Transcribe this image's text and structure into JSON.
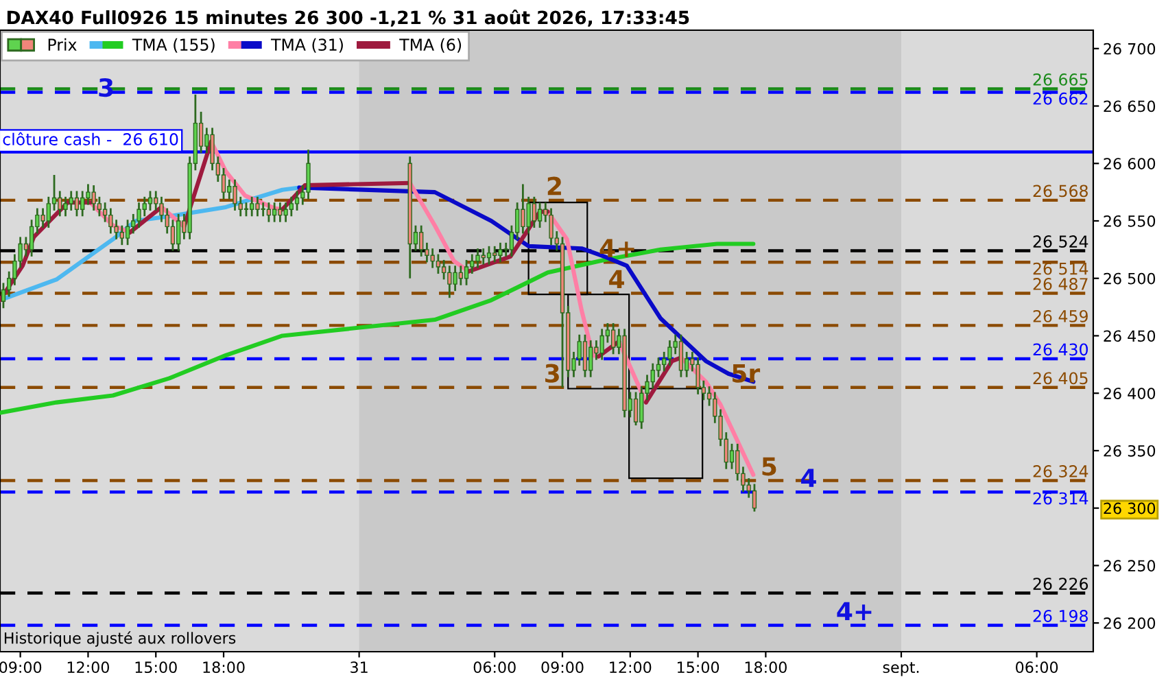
{
  "chart_data": {
    "type": "candlestick",
    "title": "DAX40 Full0926 15 minutes 26 300 -1,21 % 31 août 2026, 17:33:45",
    "series": [
      {
        "name": "Prix",
        "color": "#2d6a1f",
        "x": [
          "2026-08-30T08:15",
          "2026-08-30T08:30",
          "2026-08-30T08:45",
          "2026-08-30T09:00",
          "2026-08-30T09:15",
          "2026-08-30T09:30",
          "2026-08-30T09:45",
          "2026-08-30T10:00",
          "2026-08-30T10:15",
          "2026-08-30T10:30",
          "2026-08-30T10:45",
          "2026-08-30T11:00",
          "2026-08-30T11:15",
          "2026-08-30T11:30",
          "2026-08-30T11:45",
          "2026-08-30T12:00",
          "2026-08-30T12:15",
          "2026-08-30T12:30",
          "2026-08-30T12:45",
          "2026-08-30T13:00",
          "2026-08-30T13:15",
          "2026-08-30T13:30",
          "2026-08-30T13:45",
          "2026-08-30T14:00",
          "2026-08-30T14:15",
          "2026-08-30T14:30",
          "2026-08-30T14:45",
          "2026-08-30T15:00",
          "2026-08-30T15:15",
          "2026-08-30T15:30",
          "2026-08-30T15:45",
          "2026-08-30T16:00",
          "2026-08-30T16:15",
          "2026-08-30T16:30",
          "2026-08-30T16:45",
          "2026-08-30T17:00",
          "2026-08-30T17:15",
          "2026-08-30T17:30",
          "2026-08-30T17:45",
          "2026-08-30T18:00",
          "2026-08-30T18:15",
          "2026-08-30T18:30",
          "2026-08-30T18:45",
          "2026-08-30T19:00",
          "2026-08-30T19:15",
          "2026-08-30T19:30",
          "2026-08-30T19:45",
          "2026-08-30T20:00",
          "2026-08-30T20:15",
          "2026-08-30T20:30",
          "2026-08-30T20:45",
          "2026-08-30T21:00",
          "2026-08-30T21:15",
          "2026-08-30T21:30",
          "2026-08-30T21:45",
          "2026-08-31T02:15",
          "2026-08-31T02:30",
          "2026-08-31T02:45",
          "2026-08-31T03:00",
          "2026-08-31T03:15",
          "2026-08-31T03:30",
          "2026-08-31T03:45",
          "2026-08-31T04:00",
          "2026-08-31T04:15",
          "2026-08-31T04:30",
          "2026-08-31T04:45",
          "2026-08-31T05:00",
          "2026-08-31T05:15",
          "2026-08-31T05:30",
          "2026-08-31T05:45",
          "2026-08-31T06:00",
          "2026-08-31T06:15",
          "2026-08-31T06:30",
          "2026-08-31T06:45",
          "2026-08-31T07:00",
          "2026-08-31T07:15",
          "2026-08-31T07:30",
          "2026-08-31T07:45",
          "2026-08-31T08:00",
          "2026-08-31T08:15",
          "2026-08-31T08:30",
          "2026-08-31T08:45",
          "2026-08-31T09:00",
          "2026-08-31T09:15",
          "2026-08-31T09:30",
          "2026-08-31T09:45",
          "2026-08-31T10:00",
          "2026-08-31T10:15",
          "2026-08-31T10:30",
          "2026-08-31T10:45",
          "2026-08-31T11:00",
          "2026-08-31T11:15",
          "2026-08-31T11:30",
          "2026-08-31T11:45",
          "2026-08-31T12:00",
          "2026-08-31T12:15",
          "2026-08-31T12:30",
          "2026-08-31T12:45",
          "2026-08-31T13:00",
          "2026-08-31T13:15",
          "2026-08-31T13:30",
          "2026-08-31T13:45",
          "2026-08-31T14:00",
          "2026-08-31T14:15",
          "2026-08-31T14:30",
          "2026-08-31T14:45",
          "2026-08-31T15:00",
          "2026-08-31T15:15",
          "2026-08-31T15:30",
          "2026-08-31T15:45",
          "2026-08-31T16:00",
          "2026-08-31T16:15",
          "2026-08-31T16:30",
          "2026-08-31T16:45",
          "2026-08-31T17:00",
          "2026-08-31T17:15",
          "2026-08-31T17:30"
        ],
        "ohlc": [
          [
            26480,
            26496,
            26474,
            26490
          ],
          [
            26490,
            26506,
            26484,
            26500
          ],
          [
            26500,
            26521,
            26494,
            26515
          ],
          [
            26515,
            26536,
            26509,
            26530
          ],
          [
            26530,
            26536,
            26519,
            26525
          ],
          [
            26525,
            26551,
            26519,
            26545
          ],
          [
            26545,
            26561,
            26539,
            26555
          ],
          [
            26555,
            26561,
            26544,
            26550
          ],
          [
            26550,
            26571,
            26544,
            26565
          ],
          [
            26565,
            26590,
            26559,
            26570
          ],
          [
            26570,
            26576,
            26554,
            26560
          ],
          [
            26560,
            26571,
            26554,
            26565
          ],
          [
            26565,
            26576,
            26559,
            26570
          ],
          [
            26570,
            26576,
            26554,
            26560
          ],
          [
            26560,
            26576,
            26554,
            26570
          ],
          [
            26570,
            26582,
            26564,
            26575
          ],
          [
            26575,
            26581,
            26559,
            26565
          ],
          [
            26565,
            26571,
            26554,
            26560
          ],
          [
            26560,
            26566,
            26549,
            26555
          ],
          [
            26555,
            26561,
            26539,
            26545
          ],
          [
            26545,
            26551,
            26534,
            26540
          ],
          [
            26540,
            26546,
            26529,
            26535
          ],
          [
            26535,
            26551,
            26529,
            26545
          ],
          [
            26545,
            26556,
            26539,
            26550
          ],
          [
            26550,
            26566,
            26544,
            26560
          ],
          [
            26560,
            26571,
            26554,
            26565
          ],
          [
            26565,
            26576,
            26559,
            26570
          ],
          [
            26570,
            26576,
            26559,
            26565
          ],
          [
            26565,
            26571,
            26549,
            26555
          ],
          [
            26555,
            26561,
            26539,
            26545
          ],
          [
            26545,
            26551,
            26524,
            26530
          ],
          [
            26530,
            26556,
            26524,
            26550
          ],
          [
            26550,
            26556,
            26534,
            26540
          ],
          [
            26540,
            26606,
            26534,
            26600
          ],
          [
            26600,
            26660,
            26594,
            26635
          ],
          [
            26635,
            26645,
            26609,
            26615
          ],
          [
            26615,
            26631,
            26609,
            26625
          ],
          [
            26625,
            26631,
            26594,
            26600
          ],
          [
            26600,
            26606,
            26584,
            26590
          ],
          [
            26590,
            26596,
            26569,
            26575
          ],
          [
            26575,
            26586,
            26569,
            26580
          ],
          [
            26580,
            26586,
            26559,
            26565
          ],
          [
            26565,
            26571,
            26554,
            26560
          ],
          [
            26560,
            26566,
            26554,
            26560
          ],
          [
            26560,
            26571,
            26554,
            26565
          ],
          [
            26565,
            26571,
            26554,
            26560
          ],
          [
            26560,
            26566,
            26554,
            26560
          ],
          [
            26560,
            26566,
            26549,
            26555
          ],
          [
            26555,
            26566,
            26549,
            26560
          ],
          [
            26560,
            26566,
            26549,
            26555
          ],
          [
            26555,
            26566,
            26549,
            26560
          ],
          [
            26560,
            26571,
            26554,
            26565
          ],
          [
            26565,
            26576,
            26559,
            26570
          ],
          [
            26570,
            26581,
            26564,
            26575
          ],
          [
            26575,
            26612,
            26569,
            26600
          ],
          [
            26600,
            26606,
            26500,
            26530
          ],
          [
            26530,
            26546,
            26524,
            26540
          ],
          [
            26540,
            26546,
            26519,
            26525
          ],
          [
            26525,
            26531,
            26514,
            26520
          ],
          [
            26520,
            26526,
            26509,
            26515
          ],
          [
            26515,
            26521,
            26504,
            26510
          ],
          [
            26510,
            26516,
            26499,
            26505
          ],
          [
            26505,
            26511,
            26483,
            26495
          ],
          [
            26495,
            26511,
            26489,
            26505
          ],
          [
            26505,
            26511,
            26494,
            26500
          ],
          [
            26500,
            26516,
            26494,
            26510
          ],
          [
            26510,
            26521,
            26504,
            26515
          ],
          [
            26515,
            26526,
            26509,
            26520
          ],
          [
            26520,
            26526,
            26512,
            26518
          ],
          [
            26518,
            26528,
            26512,
            26522
          ],
          [
            26522,
            26528,
            26514,
            26520
          ],
          [
            26520,
            26531,
            26514,
            26525
          ],
          [
            26525,
            26531,
            26519,
            26525
          ],
          [
            26525,
            26546,
            26519,
            26540
          ],
          [
            26540,
            26566,
            26534,
            26560
          ],
          [
            26560,
            26582,
            26539,
            26545
          ],
          [
            26545,
            26571,
            26539,
            26565
          ],
          [
            26565,
            26571,
            26544,
            26550
          ],
          [
            26550,
            26566,
            26544,
            26560
          ],
          [
            26560,
            26566,
            26549,
            26555
          ],
          [
            26555,
            26561,
            26529,
            26535
          ],
          [
            26535,
            26541,
            26524,
            26530
          ],
          [
            26530,
            26536,
            26405,
            26470
          ],
          [
            26470,
            26476,
            26414,
            26420
          ],
          [
            26420,
            26436,
            26414,
            26430
          ],
          [
            26430,
            26451,
            26424,
            26445
          ],
          [
            26445,
            26451,
            26414,
            26420
          ],
          [
            26420,
            26446,
            26414,
            26440
          ],
          [
            26440,
            26446,
            26429,
            26435
          ],
          [
            26435,
            26456,
            26429,
            26450
          ],
          [
            26450,
            26461,
            26444,
            26455
          ],
          [
            26455,
            26461,
            26434,
            26440
          ],
          [
            26440,
            26456,
            26434,
            26450
          ],
          [
            26450,
            26456,
            26379,
            26385
          ],
          [
            26385,
            26401,
            26379,
            26395
          ],
          [
            26395,
            26401,
            26372,
            26375
          ],
          [
            26375,
            26406,
            26369,
            26400
          ],
          [
            26400,
            26416,
            26394,
            26410
          ],
          [
            26410,
            26426,
            26404,
            26420
          ],
          [
            26420,
            26431,
            26414,
            26425
          ],
          [
            26425,
            26436,
            26419,
            26430
          ],
          [
            26430,
            26446,
            26424,
            26440
          ],
          [
            26440,
            26451,
            26434,
            26445
          ],
          [
            26445,
            26451,
            26414,
            26420
          ],
          [
            26420,
            26436,
            26414,
            26430
          ],
          [
            26430,
            26436,
            26419,
            26425
          ],
          [
            26425,
            26431,
            26399,
            26405
          ],
          [
            26405,
            26411,
            26394,
            26400
          ],
          [
            26400,
            26406,
            26389,
            26395
          ],
          [
            26395,
            26401,
            26374,
            26380
          ],
          [
            26380,
            26386,
            26354,
            26360
          ],
          [
            26360,
            26366,
            26334,
            26340
          ],
          [
            26340,
            26356,
            26334,
            26350
          ],
          [
            26350,
            26356,
            26324,
            26330
          ],
          [
            26330,
            26336,
            26314,
            26320
          ],
          [
            26320,
            26326,
            26309,
            26315
          ],
          [
            26315,
            26321,
            26297,
            26300
          ]
        ]
      },
      {
        "name": "TMA (155)",
        "type": "line",
        "color": "#22cc22",
        "x": [
          "2026-08-30T08:06",
          "2026-08-30T10:36",
          "2026-08-30T13:06",
          "2026-08-30T15:36",
          "2026-08-30T18:06",
          "2026-08-30T20:36",
          "2026-08-31T03:21",
          "2026-08-31T05:51",
          "2026-08-31T08:21",
          "2026-08-31T10:51",
          "2026-08-31T13:21",
          "2026-08-31T15:51",
          "2026-08-31T17:27"
        ],
        "values": [
          26383,
          26392,
          26398,
          26413,
          26433,
          26450,
          26464,
          26481,
          26505,
          26516,
          26525,
          26530,
          26530
        ]
      },
      {
        "type": "line",
        "color": "#4db8f0",
        "x": [
          "2026-08-30T08:06",
          "2026-08-30T10:36",
          "2026-08-30T13:06",
          "2026-08-30T14:06",
          "2026-08-30T15:36",
          "2026-08-30T18:06",
          "2026-08-30T20:36",
          "2026-08-30T21:21"
        ],
        "values": [
          26481,
          26499,
          26534,
          26550,
          26554,
          26562,
          26577,
          26579
        ]
      },
      {
        "name": "TMA (31)",
        "type": "line",
        "color": "#0a0ac8",
        "x": [
          "2026-08-30T21:21",
          "2026-08-31T03:21",
          "2026-08-31T05:51",
          "2026-08-31T07:30",
          "2026-08-31T09:51",
          "2026-08-31T10:51",
          "2026-08-31T11:51",
          "2026-08-31T13:21",
          "2026-08-31T15:21",
          "2026-08-31T16:21",
          "2026-08-31T17:27"
        ],
        "values": [
          26579,
          26575,
          26550,
          26528,
          26526,
          26519,
          26511,
          26465,
          26428,
          26417,
          26410
        ]
      },
      {
        "type": "line",
        "color": "#ff7fa5",
        "x": [
          "2026-08-30T12:06",
          "2026-08-30T13:06",
          "2026-08-30T13:51",
          "2026-08-30T14:30",
          "2026-08-30T15:15",
          "2026-08-30T16:15",
          "2026-08-30T16:45",
          "2026-08-30T17:27",
          "2026-08-30T18:06",
          "2026-08-30T18:57",
          "2026-08-30T20:15",
          "2026-08-30T20:36",
          "2026-08-30T21:15",
          "2026-08-31T02:15",
          "2026-08-31T03:21",
          "2026-08-31T04:12",
          "2026-08-31T04:51",
          "2026-08-31T06:45",
          "2026-08-31T08:21",
          "2026-08-31T09:12",
          "2026-08-31T09:51",
          "2026-08-31T10:21",
          "2026-08-31T10:36",
          "2026-08-31T11:00",
          "2026-08-31T11:30",
          "2026-08-31T12:42",
          "2026-08-31T13:15",
          "2026-08-31T14:15",
          "2026-08-31T15:21",
          "2026-08-31T16:00",
          "2026-08-31T17:27"
        ],
        "values": [
          26566,
          26546,
          26540,
          null,
          26562,
          26545,
          null,
          26619,
          26593,
          26572,
          26561,
          26560,
          null,
          26583,
          26546,
          26515,
          26506,
          null,
          26558,
          26534,
          26472,
          26433,
          26432,
          null,
          26445,
          26392,
          null,
          26431,
          26410,
          26390,
          26329
        ]
      },
      {
        "name": "TMA (6)",
        "type": "line",
        "color": "#9e1a3e",
        "x": [
          "2026-08-30T08:06",
          "2026-08-30T09:06",
          "2026-08-30T09:36",
          "2026-08-30T11:06",
          "2026-08-30T12:06",
          "2026-08-30T13:00",
          "2026-08-30T13:51",
          "2026-08-30T15:15",
          "2026-08-30T15:45",
          "2026-08-30T16:15",
          "2026-08-30T17:27",
          "2026-08-30T19:00",
          "2026-08-30T20:36",
          "2026-08-30T21:36",
          "2026-08-31T02:15",
          "2026-08-31T03:30",
          "2026-08-31T04:51",
          "2026-08-31T05:51",
          "2026-08-31T06:42",
          "2026-08-31T08:00",
          "2026-08-31T08:21",
          "2026-08-31T09:15",
          "2026-08-31T10:36",
          "2026-08-31T11:30",
          "2026-08-31T12:00",
          "2026-08-31T12:42",
          "2026-08-31T13:51",
          "2026-08-31T14:15"
        ],
        "values": [
          26481,
          26511,
          26536,
          26566,
          26566,
          null,
          26540,
          26562,
          null,
          26545,
          26619,
          null,
          26560,
          26581,
          26583,
          null,
          26506,
          26513,
          26519,
          26558,
          26558,
          null,
          26432,
          26445,
          null,
          26392,
          26428,
          26431
        ]
      }
    ],
    "xlim": [
      "2026-08-30T08:06",
      "2026-09-01T08:30"
    ],
    "xticks": [
      {
        "value": "2026-08-30T09:00",
        "label": "09:00"
      },
      {
        "value": "2026-08-30T12:00",
        "label": "12:00"
      },
      {
        "value": "2026-08-30T15:00",
        "label": "15:00"
      },
      {
        "value": "2026-08-30T18:00",
        "label": "18:00"
      },
      {
        "value": "2026-08-31",
        "label": "31"
      },
      {
        "value": "2026-08-31T06:00",
        "label": "06:00"
      },
      {
        "value": "2026-08-31T09:00",
        "label": "09:00"
      },
      {
        "value": "2026-08-31T12:00",
        "label": "12:00"
      },
      {
        "value": "2026-08-31T15:00",
        "label": "15:00"
      },
      {
        "value": "2026-08-31T18:00",
        "label": "18:00"
      },
      {
        "value": "2026-09-01",
        "label": "sept."
      },
      {
        "value": "2026-09-01T06:00",
        "label": "06:00"
      }
    ],
    "ylim": [
      26175,
      26716
    ],
    "yticks": [
      {
        "value": 26200,
        "label": "26 200"
      },
      {
        "value": 26250,
        "label": "26 250"
      },
      {
        "value": 26300,
        "label": "26 300"
      },
      {
        "value": 26350,
        "label": "26 350"
      },
      {
        "value": 26400,
        "label": "26 400"
      },
      {
        "value": 26450,
        "label": "26 450"
      },
      {
        "value": 26500,
        "label": "26 500"
      },
      {
        "value": 26550,
        "label": "26 550"
      },
      {
        "value": 26600,
        "label": "26 600"
      },
      {
        "value": 26650,
        "label": "26 650"
      },
      {
        "value": 26700,
        "label": "26 700"
      }
    ],
    "bands": [
      {
        "axis": "x",
        "from": "2026-08-31",
        "to": "2026-09-01",
        "color": "#c9c9c9"
      }
    ],
    "ref_lines": [
      {
        "axis": "y",
        "value": 26665,
        "label": "26 665",
        "color": "#1a8a1a",
        "line_style": "dashed"
      },
      {
        "axis": "y",
        "value": 26662,
        "label": "26 662",
        "color": "#0000ff",
        "line_style": "dashed"
      },
      {
        "axis": "y",
        "value": 26610,
        "label": "clôture cash -  26 610",
        "color": "#0000ff",
        "line_style": "solid"
      },
      {
        "axis": "y",
        "value": 26568,
        "label": "26 568",
        "color": "#8b4a00",
        "line_style": "dashed"
      },
      {
        "axis": "y",
        "value": 26524,
        "label": "26 524",
        "color": "#000000",
        "line_style": "dashed"
      },
      {
        "axis": "y",
        "value": 26514,
        "label": "26 514",
        "color": "#8b4a00",
        "line_style": "dashed"
      },
      {
        "axis": "y",
        "value": 26487,
        "label": "26 487",
        "color": "#8b4a00",
        "line_style": "dashed"
      },
      {
        "axis": "y",
        "value": 26459,
        "label": "26 459",
        "color": "#8b4a00",
        "line_style": "dashed"
      },
      {
        "axis": "y",
        "value": 26430,
        "label": "26 430",
        "color": "#0000ff",
        "line_style": "dashed"
      },
      {
        "axis": "y",
        "value": 26405,
        "label": "26 405",
        "color": "#8b4a00",
        "line_style": "dashed"
      },
      {
        "axis": "y",
        "value": 26324,
        "label": "26 324",
        "color": "#8b4a00",
        "line_style": "dashed"
      },
      {
        "axis": "y",
        "value": 26314,
        "label": "26 314",
        "color": "#0000ff",
        "line_style": "dashed"
      },
      {
        "axis": "y",
        "value": 26226,
        "label": "26 226",
        "color": "#000000",
        "line_style": "dashed"
      },
      {
        "axis": "y",
        "value": 26198,
        "label": "26 198",
        "color": "#0000ff",
        "line_style": "dashed"
      }
    ],
    "annotations": [
      "3",
      {
        "text": "2",
        "x": "2026-08-31T08:39",
        "y": 26568
      },
      {
        "text": "4+",
        "x": "2026-08-31T11:27",
        "y": 26514
      },
      {
        "text": "4",
        "x": "2026-08-31T11:24",
        "y": 26487
      },
      {
        "text": "3",
        "x": "2026-08-31T08:33",
        "y": 26405
      },
      {
        "text": "5r",
        "x": "2026-08-31T17:06",
        "y": 26405
      },
      {
        "text": "5",
        "x": "2026-08-31T18:09",
        "y": 26324
      },
      {
        "text": "4",
        "x": "2026-08-31T19:54",
        "y": 26314
      },
      {
        "text": "4+",
        "x": "2026-08-31T21:57",
        "y": 26198
      },
      "Historique ajusté aux rollovers"
    ],
    "legend": "top left"
  }
}
